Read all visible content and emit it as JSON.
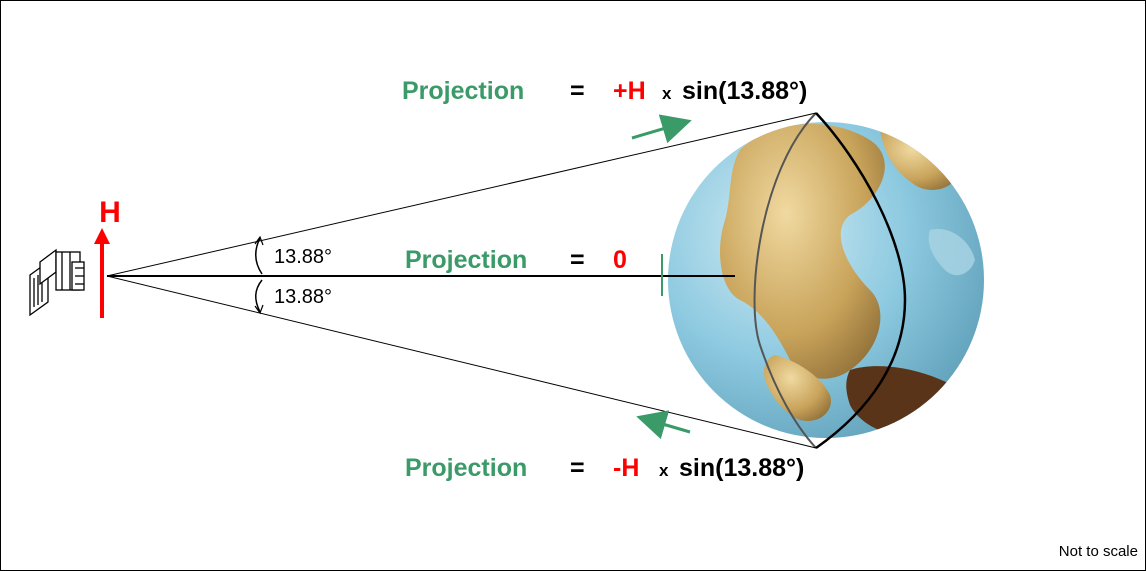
{
  "colors": {
    "accent_green": "#3a9a68",
    "accent_red": "#ff0000",
    "ocean": "#8cc9e0",
    "land": "#c8a35a"
  },
  "vector": {
    "label": "H"
  },
  "angles": {
    "upper": "13.88°",
    "lower": "13.88°"
  },
  "equations": {
    "top": {
      "word": "Projection",
      "equals": "=",
      "sign": "+H",
      "times": "x",
      "func": "sin(13.88°)"
    },
    "middle": {
      "word": "Projection",
      "equals": "=",
      "value": "0"
    },
    "bottom": {
      "word": "Projection",
      "equals": "=",
      "sign": "-H",
      "times": "x",
      "func": "sin(13.88°)"
    }
  },
  "note": "Not to scale",
  "icons": {
    "satellite": "satellite-icon",
    "earth": "earth-globe"
  }
}
